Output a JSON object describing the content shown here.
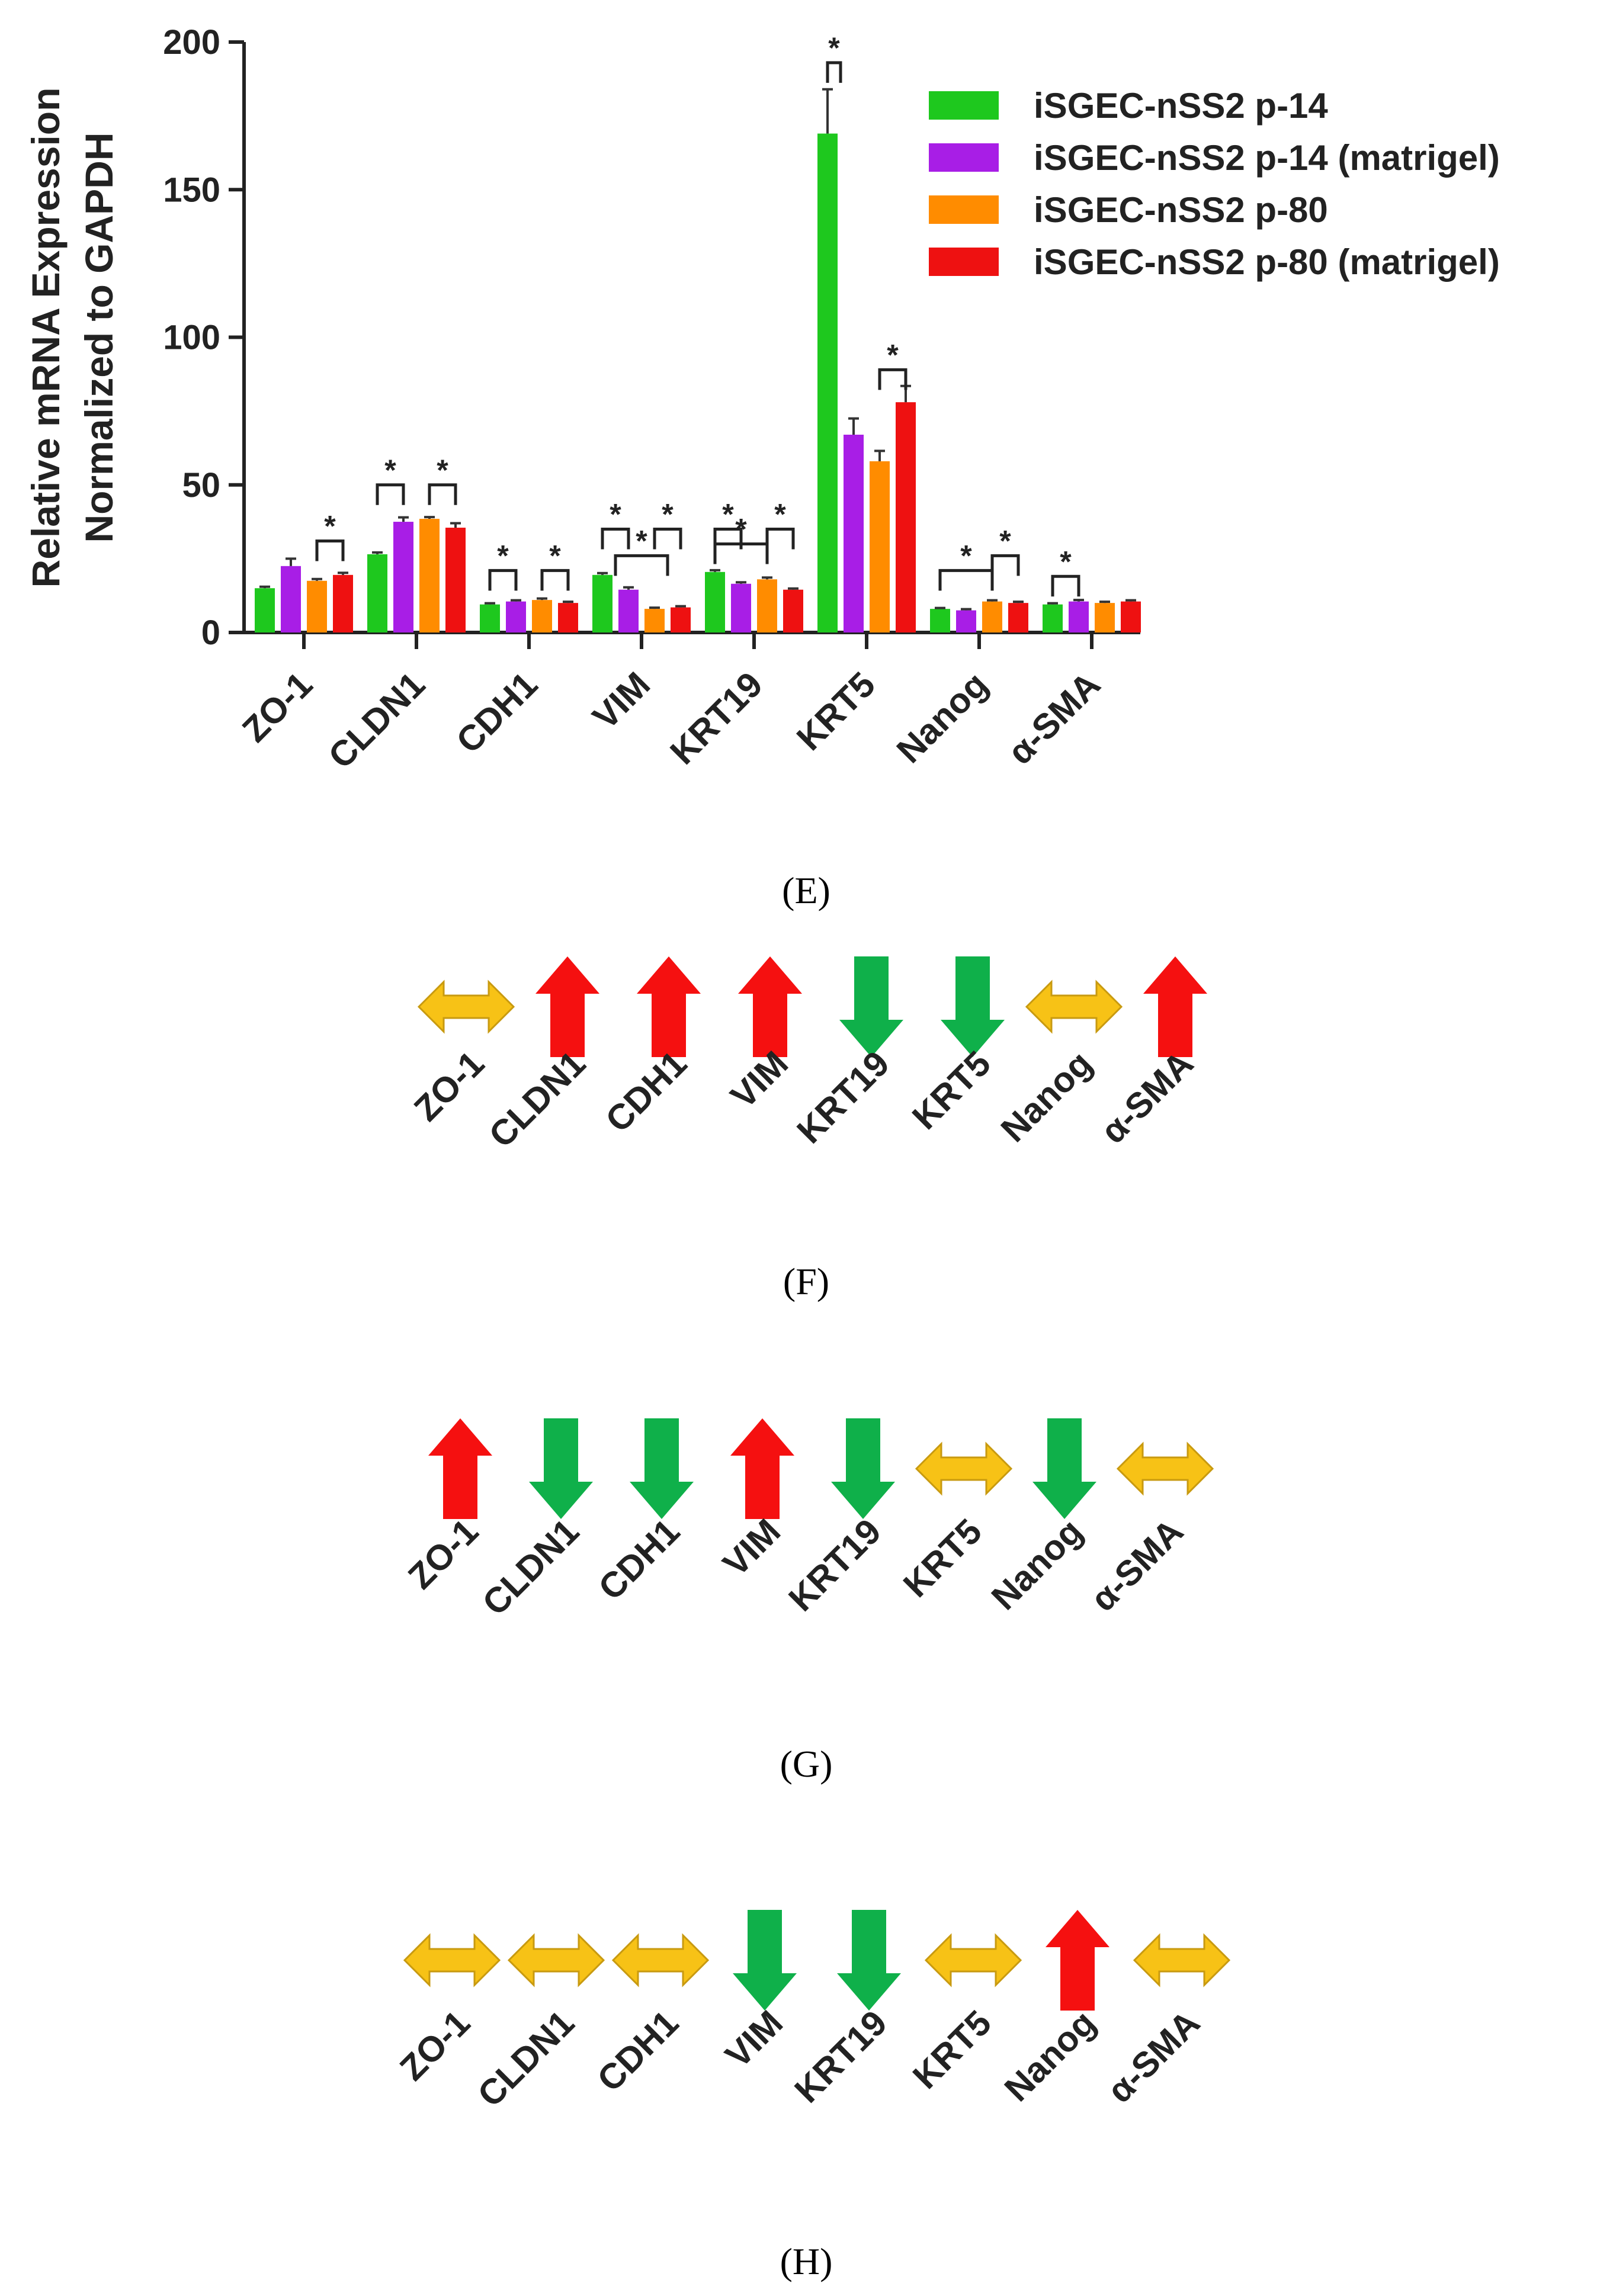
{
  "chart_data": {
    "type": "bar",
    "ylabel_line1": "Relative mRNA Expression",
    "ylabel_line2": "Normalized to GAPDH",
    "ylim": [
      0,
      200
    ],
    "yticks": [
      "0",
      "50",
      "100",
      "150",
      "200"
    ],
    "categories": [
      "ZO-1",
      "CLDN1",
      "CDH1",
      "VIM",
      "KRT19",
      "KRT5",
      "Nanog",
      "α-SMA"
    ],
    "series": [
      {
        "name": "iSGEC-nSS2 p-14",
        "color": "#1ec81e",
        "values": [
          15,
          26.5,
          9.5,
          19.5,
          20.5,
          169,
          8,
          9.5
        ],
        "errors": [
          0.5,
          0.6,
          0.4,
          0.6,
          0.6,
          15,
          0.3,
          0.4
        ]
      },
      {
        "name": "iSGEC-nSS2 p-14 (matrigel)",
        "color": "#a81ee6",
        "values": [
          22.5,
          37.5,
          10.5,
          14.5,
          16.5,
          67,
          7.5,
          10.5
        ],
        "errors": [
          2.5,
          1.5,
          0.4,
          0.8,
          0.5,
          5.5,
          0.4,
          0.5
        ]
      },
      {
        "name": "iSGEC-nSS2 p-80",
        "color": "#ff8c00",
        "values": [
          17.5,
          38.5,
          11,
          8,
          18,
          58,
          10.5,
          10
        ],
        "errors": [
          0.6,
          0.6,
          0.5,
          0.4,
          0.6,
          3.5,
          0.4,
          0.4
        ]
      },
      {
        "name": "iSGEC-nSS2 p-80 (matrigel)",
        "color": "#ee1111",
        "values": [
          19.5,
          35.5,
          10,
          8.5,
          14.5,
          78,
          10,
          10.5
        ],
        "errors": [
          0.7,
          1.5,
          0.4,
          0.4,
          0.4,
          5.5,
          0.4,
          0.4
        ]
      }
    ],
    "significance_label": "*",
    "significance": [
      {
        "cat": 0,
        "a": 2,
        "b": 3,
        "y": 31
      },
      {
        "cat": 1,
        "a": 0,
        "b": 1,
        "y": 50
      },
      {
        "cat": 1,
        "a": 2,
        "b": 3,
        "y": 50
      },
      {
        "cat": 2,
        "a": 0,
        "b": 1,
        "y": 21
      },
      {
        "cat": 2,
        "a": 2,
        "b": 3,
        "y": 21
      },
      {
        "cat": 3,
        "a": 0,
        "b": 1,
        "y": 35
      },
      {
        "cat": 3,
        "a": 2,
        "b": 3,
        "y": 35
      },
      {
        "cat": 3,
        "a": 0.5,
        "b": 2.5,
        "y": 26
      },
      {
        "cat": 4,
        "a": 0,
        "b": 1,
        "y": 35
      },
      {
        "cat": 4,
        "a": 2,
        "b": 3,
        "y": 35
      },
      {
        "cat": 4,
        "a": 0,
        "b": 2,
        "y": 30
      },
      {
        "cat": 5,
        "a": 0,
        "b": 0.5,
        "y": 193
      },
      {
        "cat": 5,
        "a": 2,
        "b": 3,
        "y": 89
      },
      {
        "cat": 6,
        "a": 0,
        "b": 2,
        "y": 21
      },
      {
        "cat": 6,
        "a": 2,
        "b": 3,
        "y": 26
      },
      {
        "cat": 7,
        "a": 0,
        "b": 1,
        "y": 19
      }
    ],
    "panel_label": "(E)",
    "legend_position": "top-right"
  },
  "arrow_panels": [
    {
      "label": "(F)",
      "genes": [
        "ZO-1",
        "CLDN1",
        "CDH1",
        "VIM",
        "KRT19",
        "KRT5",
        "Nanog",
        "α-SMA"
      ],
      "directions": [
        "both",
        "up",
        "up",
        "up",
        "down",
        "down",
        "both",
        "up"
      ]
    },
    {
      "label": "(G)",
      "genes": [
        "ZO-1",
        "CLDN1",
        "CDH1",
        "VIM",
        "KRT19",
        "KRT5",
        "Nanog",
        "α-SMA"
      ],
      "directions": [
        "up",
        "down",
        "down",
        "up",
        "down",
        "both",
        "down",
        "both"
      ]
    },
    {
      "label": "(H)",
      "genes": [
        "ZO-1",
        "CLDN1",
        "CDH1",
        "VIM",
        "KRT19",
        "KRT5",
        "Nanog",
        "α-SMA"
      ],
      "directions": [
        "both",
        "both",
        "both",
        "down",
        "down",
        "both",
        "up",
        "both"
      ]
    }
  ],
  "colors": {
    "up": "#f51010",
    "down": "#0fb04a",
    "both": "#f7c216",
    "outline": "#c89a10"
  }
}
